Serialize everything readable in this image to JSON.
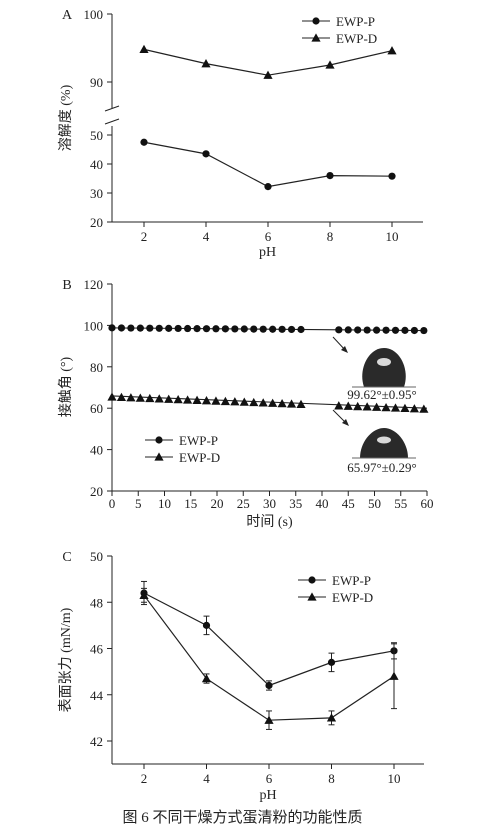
{
  "figure": {
    "caption": "图 6   不同干燥方式蛋清粉的功能性质"
  },
  "chart_data": [
    {
      "panel_label": "A",
      "type": "line",
      "xlabel": "pH",
      "ylabel": "溶解度 (%)",
      "x": [
        2,
        4,
        6,
        8,
        10
      ],
      "x_ticks": [
        "2",
        "4",
        "6",
        "8",
        "10"
      ],
      "y_ticks_upper": [
        "90",
        "100"
      ],
      "y_ticks_lower": [
        "20",
        "30",
        "40",
        "50"
      ],
      "y_axis_break": true,
      "ylim_lower": [
        20,
        55
      ],
      "ylim_upper": [
        87,
        100
      ],
      "legend_position": "top-right",
      "series": [
        {
          "name": "EWP-P",
          "marker": "circle",
          "values": [
            47.5,
            43.5,
            32.2,
            36.0,
            35.8
          ]
        },
        {
          "name": "EWP-D",
          "marker": "triangle",
          "values": [
            94.8,
            92.7,
            91.0,
            92.5,
            94.6
          ]
        }
      ]
    },
    {
      "panel_label": "B",
      "type": "line",
      "xlabel": "时间 (s)",
      "ylabel": "接触角 (°)",
      "xlim": [
        0,
        60
      ],
      "ylim": [
        20,
        120
      ],
      "x_ticks": [
        "0",
        "5",
        "10",
        "15",
        "20",
        "25",
        "30",
        "35",
        "40",
        "45",
        "50",
        "55",
        "60"
      ],
      "y_ticks": [
        "20",
        "40",
        "60",
        "80",
        "100",
        "120"
      ],
      "legend_position": "bottom-left",
      "annotations": [
        "99.62°±0.95°",
        "65.97°±0.29°"
      ],
      "series": [
        {
          "name": "EWP-P",
          "marker": "circle",
          "x_start": 0,
          "x_end": 60,
          "y_start": 98.8,
          "y_end": 97.5,
          "gap": [
            37,
            43
          ]
        },
        {
          "name": "EWP-D",
          "marker": "triangle",
          "x_start": 0,
          "x_end": 60,
          "y_start": 65.9,
          "y_end": 60.0,
          "gap": [
            37,
            43
          ]
        }
      ]
    },
    {
      "panel_label": "C",
      "type": "line",
      "xlabel": "pH",
      "ylabel": "表面张力 (mN/m)",
      "x": [
        2,
        4,
        6,
        8,
        10
      ],
      "x_ticks": [
        "2",
        "4",
        "6",
        "8",
        "10"
      ],
      "y_ticks": [
        "42",
        "44",
        "46",
        "48",
        "50"
      ],
      "ylim": [
        41.5,
        50
      ],
      "legend_position": "top-right",
      "series": [
        {
          "name": "EWP-P",
          "marker": "circle",
          "values": [
            48.4,
            47.0,
            44.4,
            45.4,
            45.9
          ],
          "errors": [
            0.5,
            0.4,
            0.2,
            0.4,
            0.35
          ]
        },
        {
          "name": "EWP-D",
          "marker": "triangle",
          "values": [
            48.3,
            44.7,
            42.9,
            43.0,
            44.8
          ],
          "errors": [
            0.3,
            0.2,
            0.4,
            0.3,
            1.4
          ]
        }
      ]
    }
  ]
}
